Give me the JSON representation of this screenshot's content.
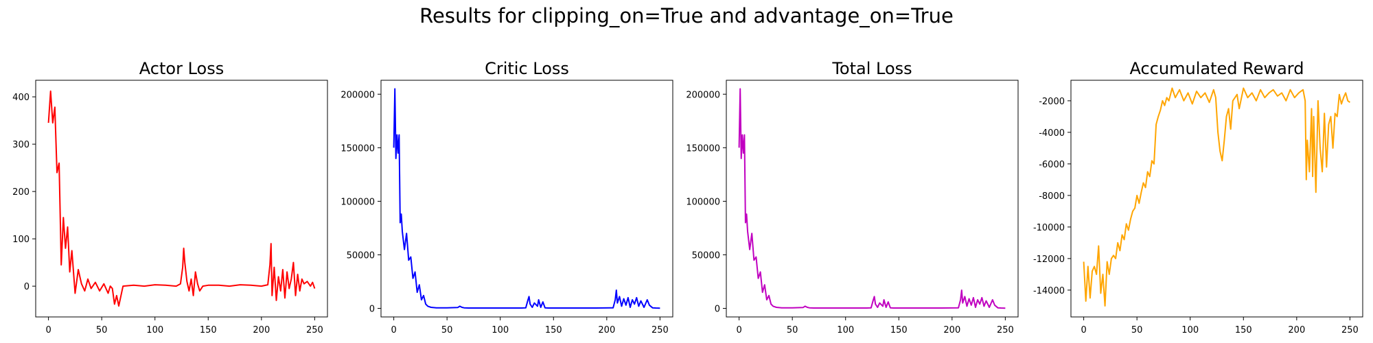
{
  "figure_title": "Results for clipping_on=True and advantage_on=True",
  "chart_data": [
    {
      "type": "line",
      "title": "Actor Loss",
      "xlabel": "",
      "ylabel": "",
      "color": "#ff0000",
      "xlim": [
        -12,
        262
      ],
      "ylim": [
        -65,
        435
      ],
      "xticks": [
        0,
        50,
        100,
        150,
        200,
        250
      ],
      "yticks": [
        0,
        100,
        200,
        300,
        400
      ],
      "x": [
        0,
        2,
        4,
        6,
        8,
        10,
        12,
        14,
        16,
        18,
        20,
        22,
        25,
        28,
        31,
        34,
        37,
        40,
        44,
        48,
        52,
        56,
        58,
        60,
        62,
        64,
        66,
        70,
        80,
        90,
        100,
        110,
        120,
        124,
        126,
        127,
        128,
        130,
        132,
        134,
        136,
        138,
        140,
        142,
        145,
        150,
        160,
        170,
        180,
        190,
        200,
        206,
        208,
        209,
        210,
        212,
        214,
        216,
        218,
        220,
        222,
        224,
        226,
        228,
        230,
        232,
        234,
        236,
        238,
        240,
        243,
        246,
        248,
        250
      ],
      "y": [
        345,
        412,
        345,
        378,
        240,
        260,
        45,
        145,
        80,
        125,
        30,
        75,
        -15,
        35,
        5,
        -10,
        15,
        -5,
        8,
        -10,
        5,
        -15,
        0,
        -5,
        -38,
        -20,
        -42,
        0,
        2,
        0,
        3,
        2,
        0,
        5,
        40,
        80,
        50,
        10,
        -10,
        15,
        -20,
        30,
        5,
        -10,
        0,
        2,
        2,
        0,
        3,
        2,
        0,
        3,
        45,
        90,
        -20,
        40,
        -30,
        20,
        -10,
        35,
        -25,
        30,
        -5,
        15,
        50,
        -20,
        25,
        -10,
        15,
        5,
        10,
        0,
        8,
        -5
      ]
    },
    {
      "type": "line",
      "title": "Critic Loss",
      "xlabel": "",
      "ylabel": "",
      "color": "#0000ff",
      "xlim": [
        -12,
        262
      ],
      "ylim": [
        -8000,
        213000
      ],
      "xticks": [
        0,
        50,
        100,
        150,
        200,
        250
      ],
      "yticks": [
        0,
        50000,
        100000,
        150000,
        200000
      ],
      "x": [
        0,
        1,
        2,
        3,
        4,
        5,
        6,
        7,
        8,
        10,
        12,
        14,
        16,
        18,
        20,
        22,
        24,
        26,
        28,
        30,
        32,
        35,
        40,
        50,
        60,
        62,
        64,
        66,
        70,
        80,
        100,
        120,
        124,
        126,
        127,
        128,
        130,
        132,
        135,
        136,
        138,
        140,
        142,
        145,
        150,
        170,
        190,
        206,
        208,
        209,
        210,
        212,
        214,
        216,
        218,
        220,
        222,
        224,
        226,
        228,
        230,
        232,
        235,
        238,
        240,
        243,
        246,
        250
      ],
      "y": [
        150000,
        205000,
        140000,
        162000,
        145000,
        162000,
        80000,
        88000,
        72000,
        55000,
        70000,
        45000,
        48000,
        28000,
        34000,
        15000,
        22000,
        8000,
        12000,
        4000,
        2000,
        1000,
        500,
        500,
        800,
        2000,
        1000,
        500,
        300,
        300,
        300,
        300,
        500,
        8000,
        11000,
        4000,
        1000,
        5000,
        2000,
        8000,
        1000,
        6000,
        500,
        300,
        300,
        300,
        300,
        500,
        8000,
        17000,
        5000,
        11000,
        2000,
        9000,
        3000,
        10000,
        1000,
        8000,
        4000,
        10000,
        2000,
        7000,
        1000,
        8000,
        3000,
        500,
        300,
        200
      ]
    },
    {
      "type": "line",
      "title": "Total Loss",
      "xlabel": "",
      "ylabel": "",
      "color": "#c000c0",
      "xlim": [
        -12,
        262
      ],
      "ylim": [
        -8000,
        213000
      ],
      "xticks": [
        0,
        50,
        100,
        150,
        200,
        250
      ],
      "yticks": [
        0,
        50000,
        100000,
        150000,
        200000
      ],
      "x": [
        0,
        1,
        2,
        3,
        4,
        5,
        6,
        7,
        8,
        10,
        12,
        14,
        16,
        18,
        20,
        22,
        24,
        26,
        28,
        30,
        32,
        35,
        40,
        50,
        60,
        62,
        64,
        66,
        70,
        80,
        100,
        120,
        124,
        126,
        127,
        128,
        130,
        132,
        135,
        136,
        138,
        140,
        142,
        145,
        150,
        170,
        190,
        206,
        208,
        209,
        210,
        212,
        214,
        216,
        218,
        220,
        222,
        224,
        226,
        228,
        230,
        232,
        235,
        238,
        240,
        243,
        246,
        250
      ],
      "y": [
        150000,
        205000,
        140000,
        162000,
        145000,
        162000,
        80000,
        88000,
        72000,
        55000,
        70000,
        45000,
        48000,
        28000,
        34000,
        15000,
        22000,
        8000,
        12000,
        4000,
        2000,
        1000,
        500,
        500,
        800,
        2000,
        1000,
        500,
        300,
        300,
        300,
        300,
        500,
        8000,
        11000,
        4000,
        1000,
        5000,
        2000,
        8000,
        1000,
        6000,
        500,
        300,
        300,
        300,
        300,
        500,
        8000,
        17000,
        5000,
        11000,
        2000,
        9000,
        3000,
        10000,
        1000,
        8000,
        4000,
        10000,
        2000,
        7000,
        1000,
        8000,
        3000,
        500,
        300,
        200
      ]
    },
    {
      "type": "line",
      "title": "Accumulated Reward",
      "xlabel": "",
      "ylabel": "",
      "color": "#ffa500",
      "xlim": [
        -12,
        262
      ],
      "ylim": [
        -15700,
        -700
      ],
      "xticks": [
        0,
        50,
        100,
        150,
        200,
        250
      ],
      "yticks": [
        -14000,
        -12000,
        -10000,
        -8000,
        -6000,
        -4000,
        -2000
      ],
      "x": [
        0,
        2,
        4,
        6,
        8,
        10,
        12,
        14,
        16,
        18,
        20,
        22,
        24,
        26,
        28,
        30,
        32,
        34,
        36,
        38,
        40,
        42,
        44,
        46,
        48,
        50,
        52,
        54,
        56,
        58,
        60,
        62,
        64,
        66,
        68,
        70,
        72,
        74,
        76,
        78,
        80,
        83,
        86,
        90,
        94,
        98,
        102,
        106,
        110,
        114,
        118,
        122,
        124,
        126,
        128,
        130,
        132,
        134,
        136,
        138,
        140,
        142,
        144,
        146,
        150,
        154,
        158,
        162,
        166,
        170,
        174,
        178,
        182,
        186,
        190,
        194,
        198,
        202,
        206,
        208,
        209,
        210,
        212,
        214,
        215,
        216,
        218,
        220,
        222,
        224,
        226,
        228,
        230,
        232,
        234,
        236,
        238,
        240,
        242,
        244,
        246,
        248,
        250
      ],
      "y": [
        -12200,
        -14700,
        -12500,
        -14500,
        -12800,
        -12500,
        -13000,
        -11200,
        -14200,
        -13000,
        -15000,
        -12200,
        -13000,
        -12000,
        -11800,
        -12000,
        -11000,
        -11500,
        -10500,
        -10800,
        -9800,
        -10200,
        -9500,
        -9000,
        -8800,
        -8000,
        -8500,
        -7800,
        -7200,
        -7500,
        -6500,
        -6800,
        -5800,
        -6000,
        -3500,
        -3000,
        -2600,
        -2000,
        -2300,
        -1800,
        -2000,
        -1200,
        -1800,
        -1300,
        -2000,
        -1500,
        -2200,
        -1400,
        -1800,
        -1500,
        -2100,
        -1300,
        -1800,
        -4000,
        -5200,
        -5800,
        -4500,
        -3000,
        -2500,
        -3800,
        -2000,
        -1800,
        -1600,
        -2500,
        -1200,
        -1800,
        -1500,
        -2000,
        -1300,
        -1800,
        -1500,
        -1300,
        -1700,
        -1500,
        -2000,
        -1300,
        -1800,
        -1500,
        -1300,
        -2000,
        -7000,
        -4500,
        -6500,
        -2500,
        -6800,
        -3000,
        -7800,
        -2000,
        -5000,
        -6500,
        -2800,
        -6200,
        -3500,
        -3000,
        -5000,
        -2800,
        -3000,
        -1600,
        -2200,
        -1800,
        -1500,
        -2000,
        -2100
      ]
    }
  ]
}
